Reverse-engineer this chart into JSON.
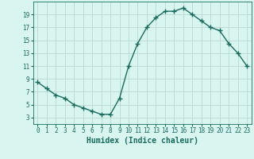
{
  "x": [
    0,
    1,
    2,
    3,
    4,
    5,
    6,
    7,
    8,
    9,
    10,
    11,
    12,
    13,
    14,
    15,
    16,
    17,
    18,
    19,
    20,
    21,
    22,
    23
  ],
  "y": [
    8.5,
    7.5,
    6.5,
    6.0,
    5.0,
    4.5,
    4.0,
    3.5,
    3.5,
    6.0,
    11.0,
    14.5,
    17.0,
    18.5,
    19.5,
    19.5,
    20.0,
    19.0,
    18.0,
    17.0,
    16.5,
    14.5,
    13.0,
    11.0
  ],
  "line_color": "#1a6b5e",
  "marker": "+",
  "marker_size": 4,
  "marker_lw": 1.0,
  "bg_color": "#d8f5f0",
  "grid_color": "#b8d8d0",
  "xlabel": "Humidex (Indice chaleur)",
  "xlim": [
    -0.5,
    23.5
  ],
  "ylim": [
    2,
    21
  ],
  "yticks": [
    3,
    5,
    7,
    9,
    11,
    13,
    15,
    17,
    19
  ],
  "xticks": [
    0,
    1,
    2,
    3,
    4,
    5,
    6,
    7,
    8,
    9,
    10,
    11,
    12,
    13,
    14,
    15,
    16,
    17,
    18,
    19,
    20,
    21,
    22,
    23
  ],
  "tick_fontsize": 5.5,
  "label_fontsize": 7.0,
  "line_width": 1.0
}
